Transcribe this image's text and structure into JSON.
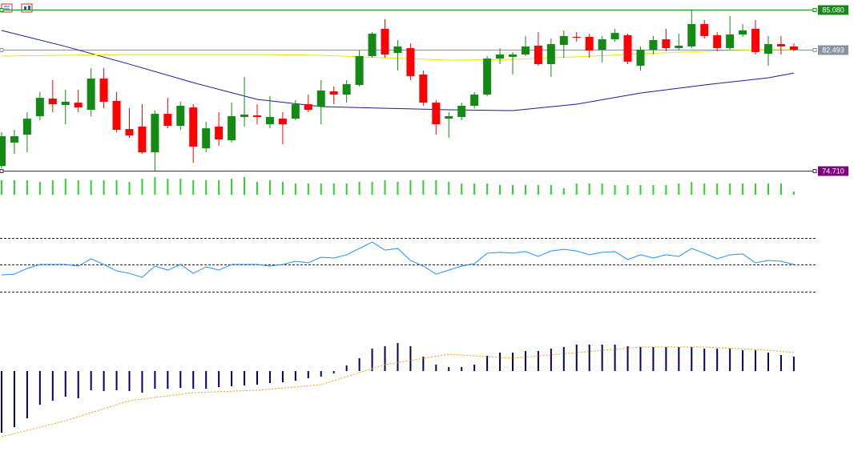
{
  "chart_data": [
    {
      "type": "candlestick",
      "open": [
        75.01,
        76.52,
        77.03,
        78.22,
        79.35,
        78.94,
        79.09,
        78.63,
        80.64,
        79.2,
        77.39,
        77.55,
        75.89,
        78.37,
        77.6,
        78.78,
        76.15,
        77.55,
        76.67,
        78.17,
        78.27,
        77.7,
        78.06,
        78.06,
        78.99,
        78.84,
        79.82,
        79.61,
        80.23,
        82.09,
        83.84,
        82.29,
        82.6,
        80.9,
        79.09,
        78.06,
        78.17,
        78.89,
        79.61,
        81.93,
        82.04,
        82.19,
        82.76,
        81.57,
        82.81,
        83.33,
        83.33,
        82.5,
        83.17,
        83.43,
        81.47,
        82.5,
        83.17,
        82.6,
        82.71,
        84.15,
        83.43,
        82.6,
        83.48,
        83.84,
        82.24,
        82.86,
        82.71
      ],
      "high": [
        77.19,
        77.34,
        78.48,
        79.77,
        80.54,
        79.92,
        79.92,
        81.31,
        81.31,
        79.77,
        78.73,
        78.99,
        78.58,
        79.4,
        79.15,
        78.99,
        77.86,
        78.48,
        79.09,
        80.75,
        78.99,
        79.51,
        78.48,
        79.25,
        79.61,
        80.54,
        80.13,
        80.54,
        82.45,
        83.63,
        84.46,
        83.12,
        82.91,
        81.16,
        79.25,
        78.48,
        79.09,
        79.77,
        82.09,
        82.6,
        82.35,
        83.38,
        83.63,
        83.22,
        83.74,
        83.63,
        83.53,
        83.38,
        83.84,
        83.53,
        82.71,
        83.38,
        83.84,
        83.53,
        85.08,
        84.41,
        83.63,
        84.67,
        84.15,
        84.41,
        83.38,
        83.38,
        82.91
      ],
      "low": [
        74.86,
        75.79,
        75.89,
        77.96,
        78.48,
        77.7,
        78.48,
        78.22,
        78.73,
        77.19,
        76.82,
        75.79,
        74.71,
        77.44,
        77.34,
        75.22,
        75.89,
        76.31,
        76.52,
        77.55,
        77.7,
        77.44,
        76.41,
        77.96,
        78.48,
        77.7,
        78.99,
        79.09,
        80.13,
        81.98,
        81.98,
        81.16,
        80.54,
        78.89,
        77.03,
        76.82,
        77.96,
        78.73,
        79.51,
        81.57,
        80.9,
        82.09,
        81.47,
        80.75,
        81.98,
        83.02,
        81.98,
        81.67,
        83.02,
        81.57,
        81.16,
        82.19,
        82.4,
        82.5,
        82.6,
        83.22,
        82.4,
        82.5,
        83.33,
        82.19,
        81.47,
        82.19,
        82.4
      ],
      "close": [
        76.93,
        76.93,
        78.06,
        79.4,
        78.99,
        79.15,
        78.78,
        80.64,
        79.15,
        77.34,
        76.98,
        75.89,
        78.37,
        77.6,
        78.89,
        76.26,
        77.44,
        76.72,
        78.22,
        78.32,
        78.17,
        78.17,
        77.7,
        78.99,
        78.63,
        79.87,
        79.61,
        80.28,
        82.09,
        83.53,
        82.19,
        82.71,
        80.8,
        79.09,
        77.7,
        78.22,
        78.89,
        79.61,
        81.93,
        82.19,
        82.19,
        82.71,
        81.57,
        82.86,
        83.38,
        83.27,
        82.45,
        83.17,
        83.58,
        81.73,
        82.5,
        83.12,
        82.6,
        82.76,
        84.15,
        83.38,
        82.6,
        83.48,
        83.74,
        82.35,
        82.86,
        82.71,
        82.5
      ],
      "up_color": "#138a13",
      "down_color": "#ff0000",
      "ylim": [
        74.71,
        85.7
      ],
      "lines": [
        {
          "x": [
            0,
            5,
            10,
            15,
            20,
            25,
            30,
            35,
            40,
            45,
            50,
            55,
            60,
            62
          ],
          "values": [
            83.74,
            82.71,
            81.57,
            80.38,
            79.3,
            78.84,
            78.73,
            78.63,
            78.58,
            78.99,
            79.71,
            80.23,
            80.69,
            81.0
          ],
          "color": "#1a1aa0"
        },
        {
          "x": [
            0,
            5,
            10,
            15,
            20,
            25,
            30,
            35,
            40,
            45,
            50,
            55,
            60,
            62
          ],
          "values": [
            82.09,
            82.14,
            82.19,
            82.19,
            82.19,
            82.14,
            81.98,
            81.83,
            81.88,
            82.04,
            82.24,
            82.4,
            82.5,
            82.5
          ],
          "color": "#e8e800"
        }
      ],
      "hlines": [
        {
          "value": 85.08,
          "label": "85.080",
          "color": "#138a13"
        },
        {
          "value": 82.493,
          "label": "82.493",
          "color": "#8494a4"
        },
        {
          "value": 74.71,
          "label": "74.710",
          "color": "#800080"
        }
      ]
    },
    {
      "type": "bar",
      "values": [
        18,
        18,
        18,
        16,
        18,
        20,
        18,
        18,
        18,
        18,
        16,
        20,
        22,
        20,
        20,
        18,
        18,
        18,
        20,
        22,
        16,
        18,
        16,
        14,
        14,
        14,
        14,
        14,
        16,
        16,
        18,
        16,
        18,
        18,
        18,
        16,
        14,
        14,
        14,
        12,
        12,
        12,
        12,
        12,
        8,
        14,
        14,
        14,
        12,
        12,
        12,
        12,
        12,
        14,
        16,
        14,
        14,
        14,
        14,
        14,
        14,
        14,
        4
      ],
      "color": "#32cd32",
      "ylim": [
        0,
        25
      ]
    },
    {
      "type": "line",
      "values": [
        42.2,
        42.8,
        47.0,
        50,
        50,
        50,
        48.8,
        54.2,
        50,
        45.2,
        43.4,
        40.4,
        48.8,
        45.8,
        50,
        43.4,
        48.2,
        45.8,
        50,
        50,
        50,
        48.8,
        50,
        52.4,
        51.2,
        55.4,
        54.8,
        57.2,
        61.9,
        66.7,
        60.7,
        61.9,
        53.0,
        48.8,
        42.8,
        45.8,
        48.8,
        50.6,
        58.4,
        59.0,
        58.4,
        59.6,
        56.0,
        60.1,
        61.3,
        60.1,
        57.2,
        59.0,
        59.6,
        53.6,
        57.2,
        54.8,
        57.2,
        56.0,
        61.9,
        58.4,
        54.2,
        57.2,
        57.8,
        51.2,
        53.0,
        52.4,
        50
      ],
      "color": "#1e90ff",
      "levels": [
        30,
        50,
        70
      ],
      "ylim": [
        10,
        90
      ]
    },
    {
      "type": "bar",
      "values": [
        -0.77,
        -0.7,
        -0.59,
        -0.42,
        -0.37,
        -0.32,
        -0.34,
        -0.24,
        -0.25,
        -0.24,
        -0.25,
        -0.27,
        -0.22,
        -0.22,
        -0.21,
        -0.22,
        -0.22,
        -0.2,
        -0.19,
        -0.18,
        -0.17,
        -0.15,
        -0.14,
        -0.12,
        -0.09,
        -0.07,
        -0.03,
        0.07,
        0.16,
        0.28,
        0.31,
        0.35,
        0.31,
        0.18,
        0.08,
        0.05,
        0.05,
        0.08,
        0.19,
        0.23,
        0.23,
        0.25,
        0.25,
        0.28,
        0.3,
        0.33,
        0.33,
        0.33,
        0.33,
        0.31,
        0.3,
        0.3,
        0.3,
        0.3,
        0.3,
        0.28,
        0.28,
        0.28,
        0.26,
        0.26,
        0.23,
        0.2,
        0.18
      ],
      "color": "#000060",
      "ylim": [
        -1,
        0.5
      ],
      "lines": [
        {
          "x": [
            0,
            5,
            10,
            15,
            20,
            25,
            30,
            35,
            40,
            45,
            50,
            55,
            60,
            62
          ],
          "values": [
            -0.82,
            -0.62,
            -0.37,
            -0.27,
            -0.24,
            -0.17,
            0.08,
            0.21,
            0.16,
            0.23,
            0.3,
            0.3,
            0.26,
            0.23
          ],
          "color": "#ff9900",
          "style": "dotted"
        }
      ]
    }
  ]
}
